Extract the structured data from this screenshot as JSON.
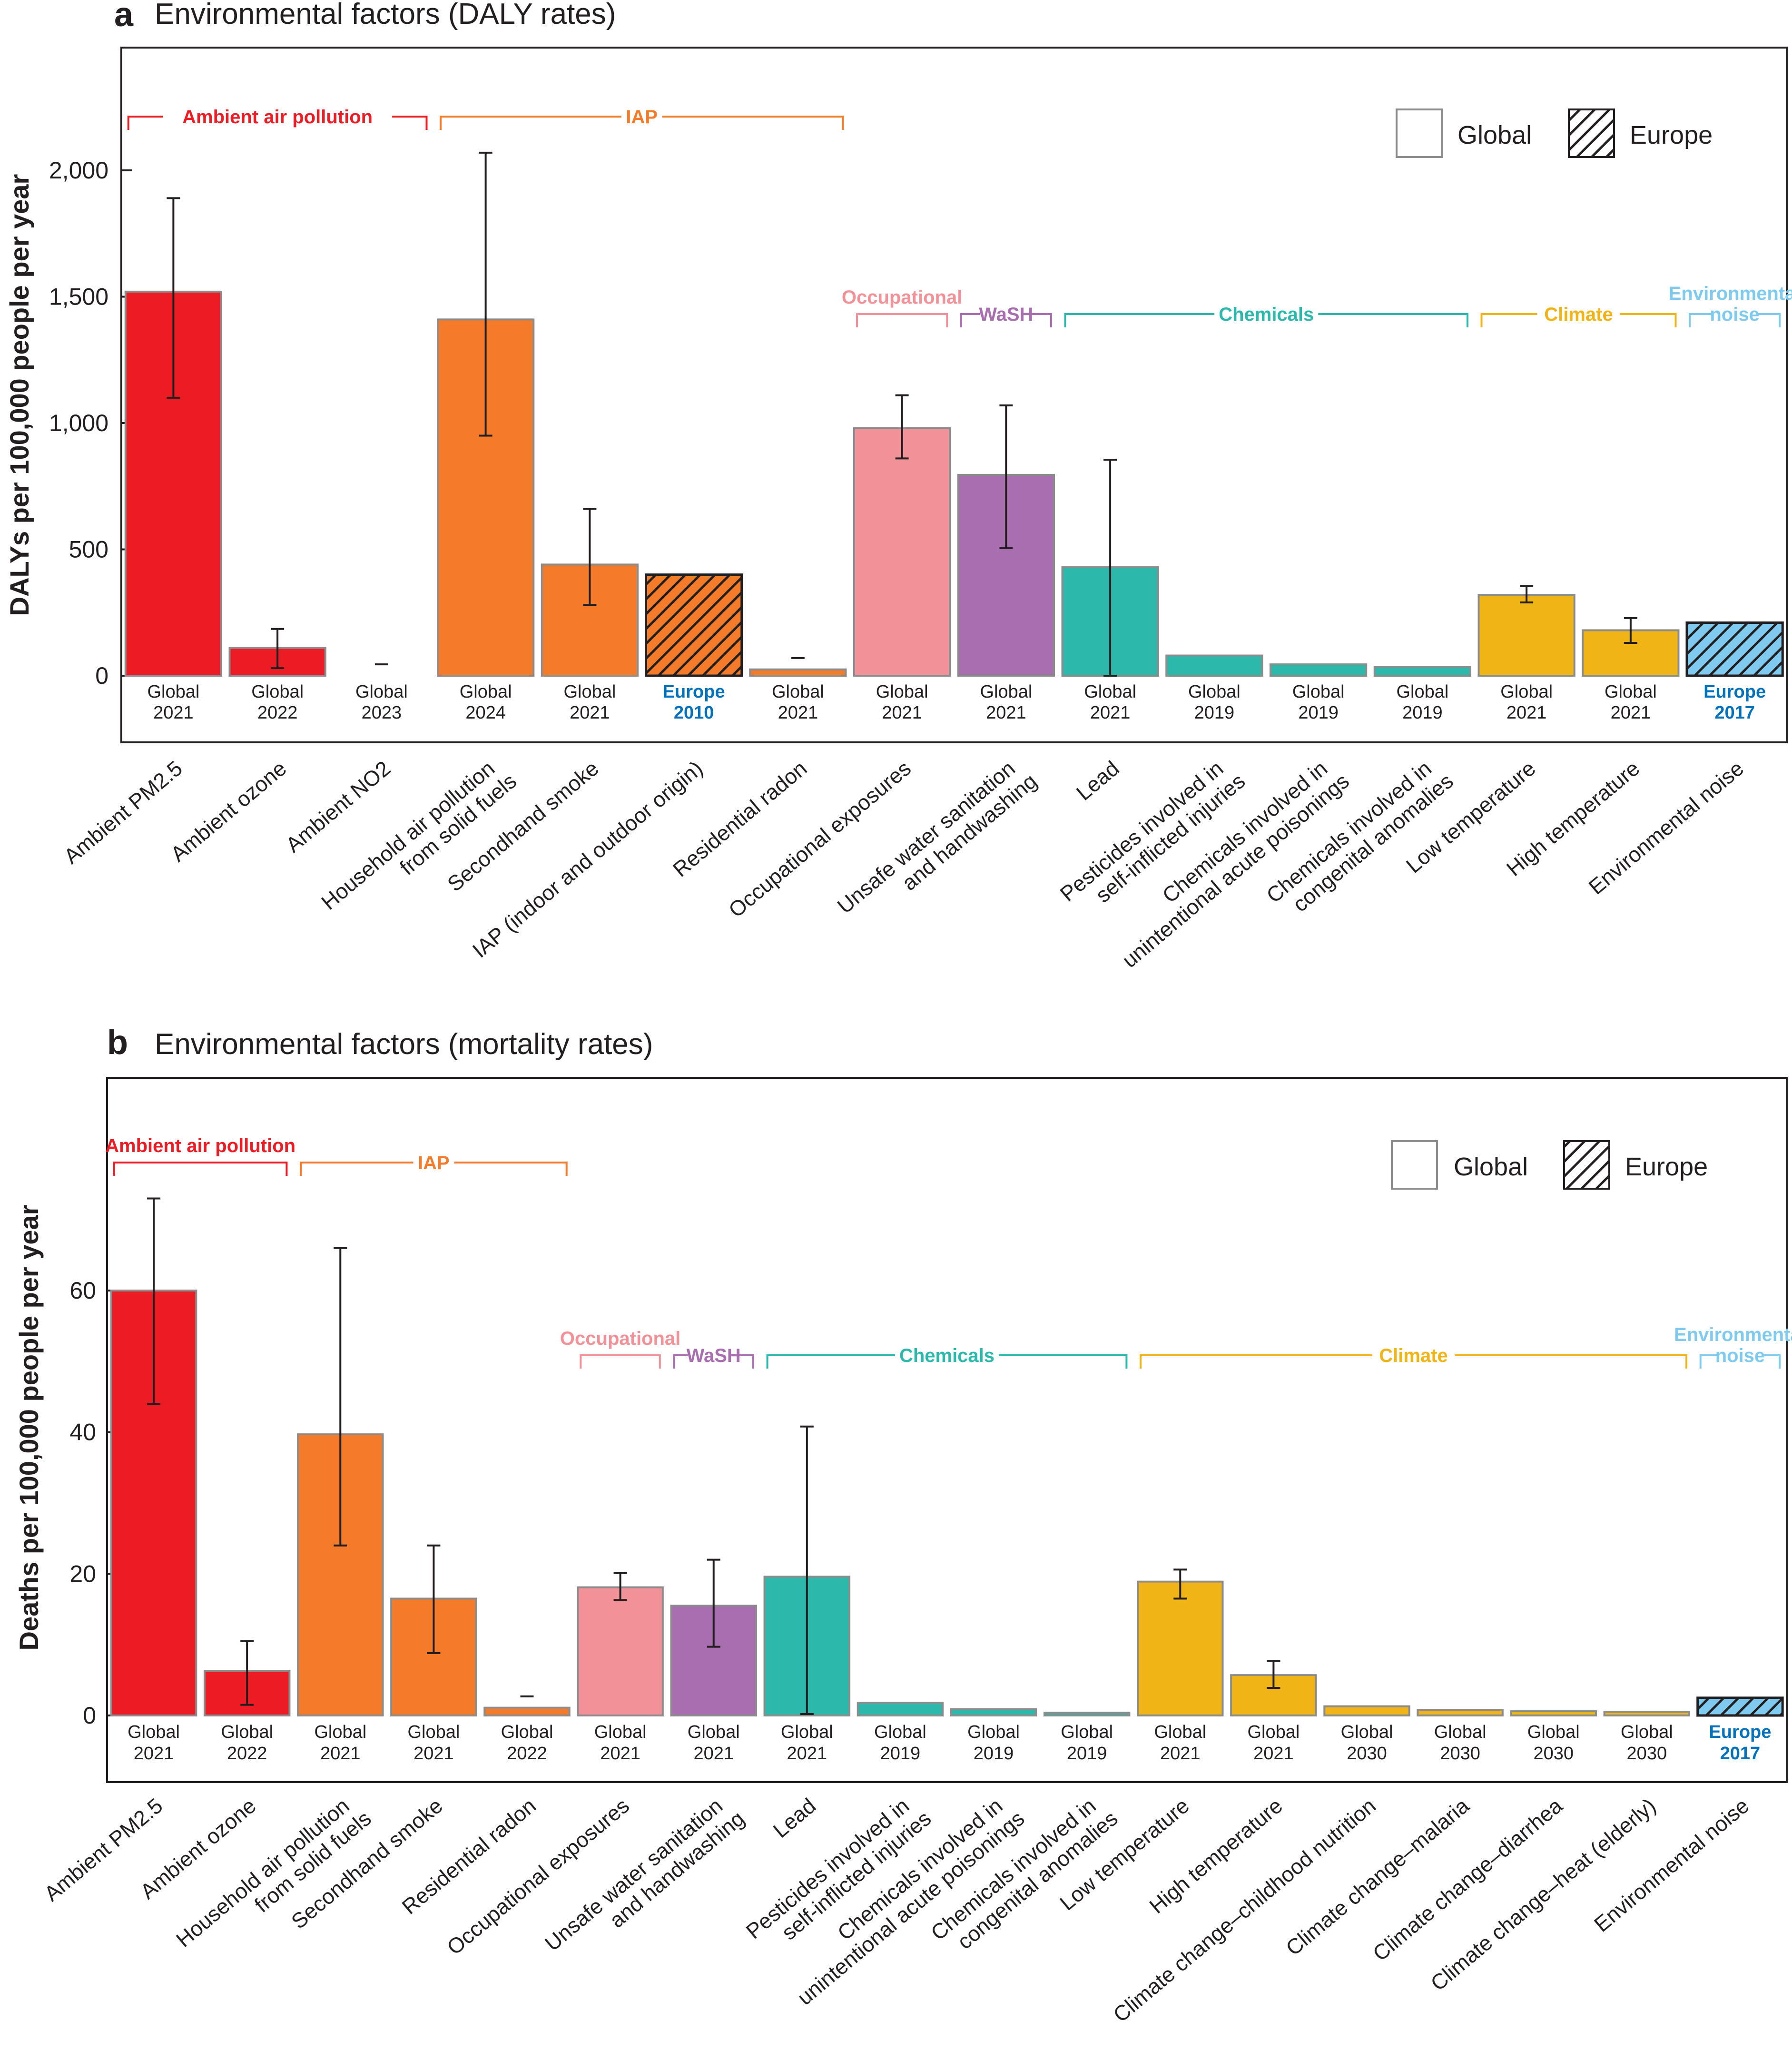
{
  "chart_data": [
    {
      "type": "bar",
      "panel_letter": "a",
      "title": "Environmental factors (DALY rates)",
      "ylabel": "DALYs per 100,000 people per year",
      "xlabel": "",
      "ylim": [
        0,
        2500
      ],
      "yticks": [
        0,
        500,
        1000,
        1500,
        2000
      ],
      "ytick_labels": [
        "0",
        "500",
        "1,000",
        "1,500",
        "2,000"
      ],
      "legend": {
        "position": "top-right",
        "items": [
          {
            "label": "Global",
            "pattern": "solid"
          },
          {
            "label": "Europe",
            "pattern": "hatched"
          }
        ]
      },
      "groups": [
        {
          "label": "Ambient air pollution",
          "color": "#ED1C24",
          "from": 0,
          "to": 2
        },
        {
          "label": "IAP",
          "color": "#F47B2A",
          "from": 3,
          "to": 6
        },
        {
          "label": "Occupational",
          "color": "#F29197",
          "from": 7,
          "to": 7
        },
        {
          "label": "WaSH",
          "color": "#A86EB0",
          "from": 8,
          "to": 8
        },
        {
          "label": "Chemicals",
          "color": "#2DB8AC",
          "from": 9,
          "to": 12
        },
        {
          "label": "Climate",
          "color": "#F0B416",
          "from": 13,
          "to": 14
        },
        {
          "label": "Environmental noise",
          "color": "#7FCBEF",
          "from": 15,
          "to": 15
        }
      ],
      "categories": [
        "Ambient PM2.5",
        "Ambient ozone",
        "Ambient NO2",
        "Household air pollution from solid fuels",
        "Secondhand smoke",
        "IAP (indoor and outdoor origin)",
        "Residential radon",
        "Occupational exposures",
        "Unsafe water sanitation and handwashing",
        "Lead",
        "Pesticides involved in self-inflicted injuries",
        "Chemicals involved in unintentional acute poisonings",
        "Chemicals involved in congenital anomalies",
        "Low temperature",
        "High temperature",
        "Environmental noise"
      ],
      "bars": [
        {
          "category": "Ambient PM2.5",
          "label_lines": [
            "Ambient PM2.5"
          ],
          "value": 1520,
          "err_low": 1100,
          "err_high": 1890,
          "scope": "Global",
          "year": "2021",
          "color": "#ED1C24",
          "hatched": false
        },
        {
          "category": "Ambient ozone",
          "label_lines": [
            "Ambient ozone"
          ],
          "value": 110,
          "err_low": 30,
          "err_high": 185,
          "scope": "Global",
          "year": "2022",
          "color": "#ED1C24",
          "hatched": false
        },
        {
          "category": "Ambient NO2",
          "label_lines": [
            "Ambient NO2"
          ],
          "value": 0,
          "err_low": 45,
          "err_high": 45,
          "scope": "Global",
          "year": "2023",
          "color": "#ED1C24",
          "hatched": false
        },
        {
          "category": "Household air pollution from solid fuels",
          "label_lines": [
            "Household air pollution",
            "from solid fuels"
          ],
          "value": 1410,
          "err_low": 950,
          "err_high": 2070,
          "scope": "Global",
          "year": "2024",
          "color": "#F47B2A",
          "hatched": false
        },
        {
          "category": "Secondhand smoke",
          "label_lines": [
            "Secondhand smoke"
          ],
          "value": 440,
          "err_low": 280,
          "err_high": 660,
          "scope": "Global",
          "year": "2021",
          "color": "#F47B2A",
          "hatched": false
        },
        {
          "category": "IAP (indoor and outdoor origin)",
          "label_lines": [
            "IAP (indoor and outdoor origin)"
          ],
          "value": 400,
          "err_low": null,
          "err_high": null,
          "scope": "Europe",
          "year": "2010",
          "color": "#F47B2A",
          "hatched": true
        },
        {
          "category": "Residential radon",
          "label_lines": [
            "Residential radon"
          ],
          "value": 25,
          "err_low": 70,
          "err_high": 70,
          "scope": "Global",
          "year": "2021",
          "color": "#F47B2A",
          "hatched": false
        },
        {
          "category": "Occupational exposures",
          "label_lines": [
            "Occupational exposures"
          ],
          "value": 980,
          "err_low": 860,
          "err_high": 1110,
          "scope": "Global",
          "year": "2021",
          "color": "#F29197",
          "hatched": false
        },
        {
          "category": "Unsafe water sanitation and handwashing",
          "label_lines": [
            "Unsafe water sanitation",
            "and handwashing"
          ],
          "value": 795,
          "err_low": 505,
          "err_high": 1070,
          "scope": "Global",
          "year": "2021",
          "color": "#A86EB0",
          "hatched": false
        },
        {
          "category": "Lead",
          "label_lines": [
            "Lead"
          ],
          "value": 430,
          "err_low": 0,
          "err_high": 855,
          "scope": "Global",
          "year": "2021",
          "color": "#2DB8AC",
          "hatched": false
        },
        {
          "category": "Pesticides involved in self-inflicted injuries",
          "label_lines": [
            "Pesticides involved in",
            "self-inflicted injuries"
          ],
          "value": 80,
          "err_low": null,
          "err_high": null,
          "scope": "Global",
          "year": "2019",
          "color": "#2DB8AC",
          "hatched": false
        },
        {
          "category": "Chemicals involved in unintentional acute poisonings",
          "label_lines": [
            "Chemicals involved in",
            "unintentional acute poisonings"
          ],
          "value": 45,
          "err_low": null,
          "err_high": null,
          "scope": "Global",
          "year": "2019",
          "color": "#2DB8AC",
          "hatched": false
        },
        {
          "category": "Chemicals involved in congenital anomalies",
          "label_lines": [
            "Chemicals involved in",
            "congenital anomalies"
          ],
          "value": 35,
          "err_low": null,
          "err_high": null,
          "scope": "Global",
          "year": "2019",
          "color": "#2DB8AC",
          "hatched": false
        },
        {
          "category": "Low temperature",
          "label_lines": [
            "Low temperature"
          ],
          "value": 320,
          "err_low": 290,
          "err_high": 355,
          "scope": "Global",
          "year": "2021",
          "color": "#F0B416",
          "hatched": false
        },
        {
          "category": "High temperature",
          "label_lines": [
            "High temperature"
          ],
          "value": 180,
          "err_low": 130,
          "err_high": 228,
          "scope": "Global",
          "year": "2021",
          "color": "#F0B416",
          "hatched": false
        },
        {
          "category": "Environmental noise",
          "label_lines": [
            "Environmental noise"
          ],
          "value": 210,
          "err_low": null,
          "err_high": null,
          "scope": "Europe",
          "year": "2017",
          "color": "#7FCBEF",
          "hatched": true
        }
      ]
    },
    {
      "type": "bar",
      "panel_letter": "b",
      "title": "Environmental factors (mortality rates)",
      "ylabel": "Deaths per 100,000 people per year",
      "xlabel": "",
      "ylim": [
        0,
        90
      ],
      "yticks": [
        0,
        20,
        40,
        60
      ],
      "ytick_labels": [
        "0",
        "20",
        "40",
        "60"
      ],
      "legend": {
        "position": "top-right",
        "items": [
          {
            "label": "Global",
            "pattern": "solid"
          },
          {
            "label": "Europe",
            "pattern": "hatched"
          }
        ]
      },
      "groups": [
        {
          "label": "Ambient air pollution",
          "color": "#ED1C24",
          "from": 0,
          "to": 1
        },
        {
          "label": "IAP",
          "color": "#F47B2A",
          "from": 2,
          "to": 4
        },
        {
          "label": "Occupational",
          "color": "#F29197",
          "from": 5,
          "to": 5
        },
        {
          "label": "WaSH",
          "color": "#A86EB0",
          "from": 6,
          "to": 6
        },
        {
          "label": "Chemicals",
          "color": "#2DB8AC",
          "from": 7,
          "to": 10
        },
        {
          "label": "Climate",
          "color": "#F0B416",
          "from": 11,
          "to": 16
        },
        {
          "label": "Environmental noise",
          "color": "#7FCBEF",
          "from": 17,
          "to": 17
        }
      ],
      "categories": [
        "Ambient PM2.5",
        "Ambient ozone",
        "Household air pollution from solid fuels",
        "Secondhand smoke",
        "Residential radon",
        "Occupational exposures",
        "Unsafe water sanitation and handwashing",
        "Lead",
        "Pesticides involved in self-inflicted injuries",
        "Chemicals involved in unintentional acute poisonings",
        "Chemicals involved in congenital anomalies",
        "Low temperature",
        "High temperature",
        "Climate change–childhood nutrition",
        "Climate change–malaria",
        "Climate change–diarrhea",
        "Climate change–heat (elderly)",
        "Environmental noise"
      ],
      "bars": [
        {
          "category": "Ambient PM2.5",
          "label_lines": [
            "Ambient PM2.5"
          ],
          "value": 60,
          "err_low": 44,
          "err_high": 73,
          "scope": "Global",
          "year": "2021",
          "color": "#ED1C24",
          "hatched": false
        },
        {
          "category": "Ambient ozone",
          "label_lines": [
            "Ambient ozone"
          ],
          "value": 6.3,
          "err_low": 1.5,
          "err_high": 10.5,
          "scope": "Global",
          "year": "2022",
          "color": "#ED1C24",
          "hatched": false
        },
        {
          "category": "Household air pollution from solid fuels",
          "label_lines": [
            "Household air pollution",
            "from solid fuels"
          ],
          "value": 39.7,
          "err_low": 24,
          "err_high": 66,
          "scope": "Global",
          "year": "2021",
          "color": "#F47B2A",
          "hatched": false
        },
        {
          "category": "Secondhand smoke",
          "label_lines": [
            "Secondhand smoke"
          ],
          "value": 16.5,
          "err_low": 8.8,
          "err_high": 24,
          "scope": "Global",
          "year": "2021",
          "color": "#F47B2A",
          "hatched": false
        },
        {
          "category": "Residential radon",
          "label_lines": [
            "Residential radon"
          ],
          "value": 1.1,
          "err_low": 2.7,
          "err_high": 2.7,
          "scope": "Global",
          "year": "2022",
          "color": "#F47B2A",
          "hatched": false
        },
        {
          "category": "Occupational exposures",
          "label_lines": [
            "Occupational exposures"
          ],
          "value": 18.1,
          "err_low": 16.3,
          "err_high": 20.1,
          "scope": "Global",
          "year": "2021",
          "color": "#F29197",
          "hatched": false
        },
        {
          "category": "Unsafe water sanitation and handwashing",
          "label_lines": [
            "Unsafe water sanitation",
            "and handwashing"
          ],
          "value": 15.5,
          "err_low": 9.7,
          "err_high": 22,
          "scope": "Global",
          "year": "2021",
          "color": "#A86EB0",
          "hatched": false
        },
        {
          "category": "Lead",
          "label_lines": [
            "Lead"
          ],
          "value": 19.6,
          "err_low": 0.2,
          "err_high": 40.8,
          "scope": "Global",
          "year": "2021",
          "color": "#2DB8AC",
          "hatched": false
        },
        {
          "category": "Pesticides involved in self-inflicted injuries",
          "label_lines": [
            "Pesticides involved in",
            "self-inflicted injuries"
          ],
          "value": 1.8,
          "err_low": null,
          "err_high": null,
          "scope": "Global",
          "year": "2019",
          "color": "#2DB8AC",
          "hatched": false
        },
        {
          "category": "Chemicals involved in unintentional acute poisonings",
          "label_lines": [
            "Chemicals involved in",
            "unintentional acute poisonings"
          ],
          "value": 0.9,
          "err_low": null,
          "err_high": null,
          "scope": "Global",
          "year": "2019",
          "color": "#2DB8AC",
          "hatched": false
        },
        {
          "category": "Chemicals involved in congenital anomalies",
          "label_lines": [
            "Chemicals involved in",
            "congenital anomalies"
          ],
          "value": 0.4,
          "err_low": null,
          "err_high": null,
          "scope": "Global",
          "year": "2019",
          "color": "#2DB8AC",
          "hatched": false
        },
        {
          "category": "Low temperature",
          "label_lines": [
            "Low temperature"
          ],
          "value": 18.9,
          "err_low": 16.5,
          "err_high": 20.6,
          "scope": "Global",
          "year": "2021",
          "color": "#F0B416",
          "hatched": false
        },
        {
          "category": "High temperature",
          "label_lines": [
            "High temperature"
          ],
          "value": 5.7,
          "err_low": 3.9,
          "err_high": 7.7,
          "scope": "Global",
          "year": "2021",
          "color": "#F0B416",
          "hatched": false
        },
        {
          "category": "Climate change–childhood nutrition",
          "label_lines": [
            "Climate change–childhood nutrition"
          ],
          "value": 1.3,
          "err_low": null,
          "err_high": null,
          "scope": "Global",
          "year": "2030",
          "color": "#F0B416",
          "hatched": false
        },
        {
          "category": "Climate change–malaria",
          "label_lines": [
            "Climate change–malaria"
          ],
          "value": 0.8,
          "err_low": null,
          "err_high": null,
          "scope": "Global",
          "year": "2030",
          "color": "#F0B416",
          "hatched": false
        },
        {
          "category": "Climate change–diarrhea",
          "label_lines": [
            "Climate change–diarrhea"
          ],
          "value": 0.6,
          "err_low": null,
          "err_high": null,
          "scope": "Global",
          "year": "2030",
          "color": "#F0B416",
          "hatched": false
        },
        {
          "category": "Climate change–heat (elderly)",
          "label_lines": [
            "Climate change–heat (elderly)"
          ],
          "value": 0.5,
          "err_low": null,
          "err_high": null,
          "scope": "Global",
          "year": "2030",
          "color": "#F0B416",
          "hatched": false
        },
        {
          "category": "Environmental noise",
          "label_lines": [
            "Environmental noise"
          ],
          "value": 2.5,
          "err_low": null,
          "err_high": null,
          "scope": "Europe",
          "year": "2017",
          "color": "#7FCBEF",
          "hatched": true
        }
      ]
    }
  ],
  "colors": {
    "europe_label": "#0072BC",
    "axis": "#231F20",
    "bar_outline": "#8C8C8C",
    "legend_box": "#8C8C8C"
  }
}
